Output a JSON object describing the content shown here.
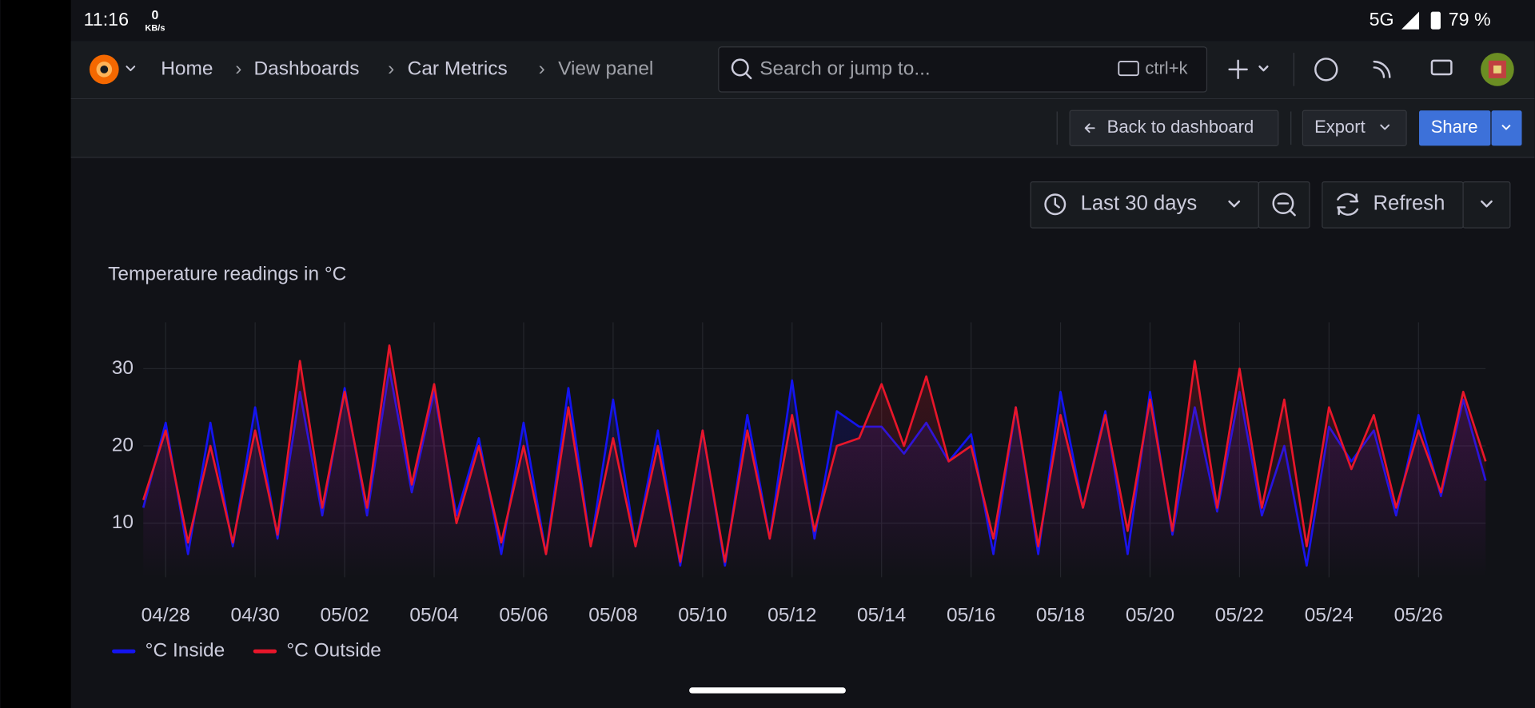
{
  "status_bar": {
    "time": "11:16",
    "net_speed": "0",
    "net_unit": "KB/s",
    "network": "5G",
    "battery": "79 %"
  },
  "nav": {
    "breadcrumbs": [
      "Home",
      "Dashboards",
      "Car Metrics",
      "View panel"
    ],
    "search_placeholder": "Search or jump to...",
    "shortcut": "ctrl+k"
  },
  "toolbar": {
    "back": "Back to dashboard",
    "export": "Export",
    "share": "Share"
  },
  "time_picker": {
    "range": "Last 30 days",
    "refresh": "Refresh"
  },
  "chart_data": {
    "type": "line",
    "title": "Temperature readings in °C",
    "categories": [
      null,
      "04/28",
      null,
      null,
      null,
      "04/30",
      null,
      null,
      null,
      "05/02",
      null,
      null,
      null,
      "05/04",
      null,
      null,
      null,
      "05/06",
      null,
      null,
      null,
      "05/08",
      null,
      null,
      null,
      "05/10",
      null,
      null,
      null,
      "05/12",
      null,
      null,
      null,
      "05/14",
      null,
      null,
      null,
      "05/16",
      null,
      null,
      null,
      "05/18",
      null,
      null,
      null,
      "05/20",
      null,
      null,
      null,
      "05/22",
      null,
      null,
      null,
      "05/24",
      null,
      null,
      null,
      "05/26",
      null,
      null,
      null
    ],
    "series": [
      {
        "name": "°C Inside",
        "color": "#1414f0",
        "values": [
          12,
          23,
          6,
          23,
          7,
          25,
          8,
          27,
          11,
          27.5,
          11,
          30,
          14,
          27,
          11,
          21,
          6,
          23,
          6,
          27.5,
          7,
          26,
          7,
          22,
          4.5,
          22,
          4.5,
          24,
          8,
          28.5,
          8,
          24.5,
          22.5,
          22.5,
          19,
          23,
          18,
          21.5,
          6,
          25,
          6,
          27,
          12,
          24.5,
          6,
          27,
          8.5,
          25,
          11.5,
          27,
          11,
          20,
          4.5,
          22.5,
          18,
          22,
          11,
          24,
          13.5,
          26,
          15.5
        ]
      },
      {
        "name": "°C Outside",
        "color": "#e8162a",
        "values": [
          13,
          22,
          7.5,
          20,
          7.5,
          22,
          8.5,
          31,
          12,
          27,
          12,
          33,
          15,
          28,
          10,
          20,
          7.5,
          20,
          6,
          25,
          7,
          21,
          7,
          20,
          5,
          22,
          5,
          22,
          8,
          24,
          9,
          20,
          21,
          28,
          20,
          29,
          18,
          20,
          8,
          25,
          7,
          24,
          12,
          24,
          9,
          26,
          9,
          31,
          12,
          30,
          12,
          26,
          7,
          25,
          17,
          24,
          12,
          22,
          14,
          27,
          18
        ]
      }
    ],
    "ylim": [
      3,
      36
    ],
    "yticks": [
      10,
      20,
      30
    ],
    "grid": true,
    "legend": "bottom-left"
  }
}
